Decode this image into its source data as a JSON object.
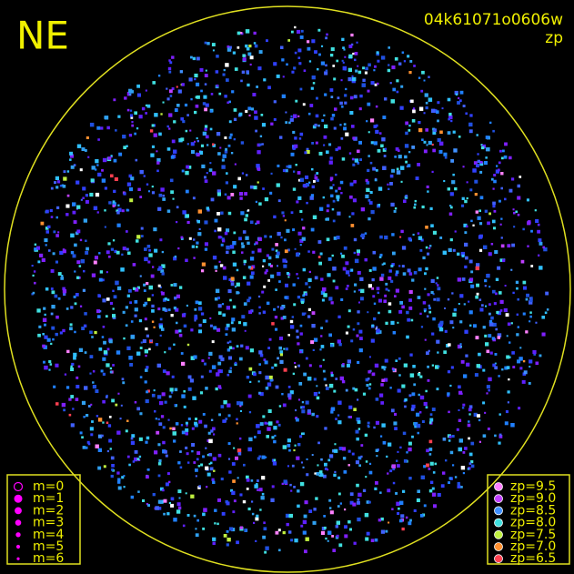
{
  "header": {
    "title": "NE",
    "image_id": "04k61071o0606w",
    "subtitle": "zp"
  },
  "magnitude_legend": {
    "color": "#ff00ff",
    "entries": [
      "m=0",
      "m=1",
      "m=2",
      "m=3",
      "m=4",
      "m=5",
      "m=6"
    ]
  },
  "zp_legend": {
    "entries": [
      {
        "label": "zp=9.5",
        "color": "#ff80ff"
      },
      {
        "label": "zp=9.0",
        "color": "#c040ff"
      },
      {
        "label": "zp=8.5",
        "color": "#4090ff"
      },
      {
        "label": "zp=8.0",
        "color": "#40e0e0"
      },
      {
        "label": "zp=7.5",
        "color": "#c0f040"
      },
      {
        "label": "zp=7.0",
        "color": "#ff9030"
      },
      {
        "label": "zp=6.5",
        "color": "#ff4050"
      }
    ]
  }
}
